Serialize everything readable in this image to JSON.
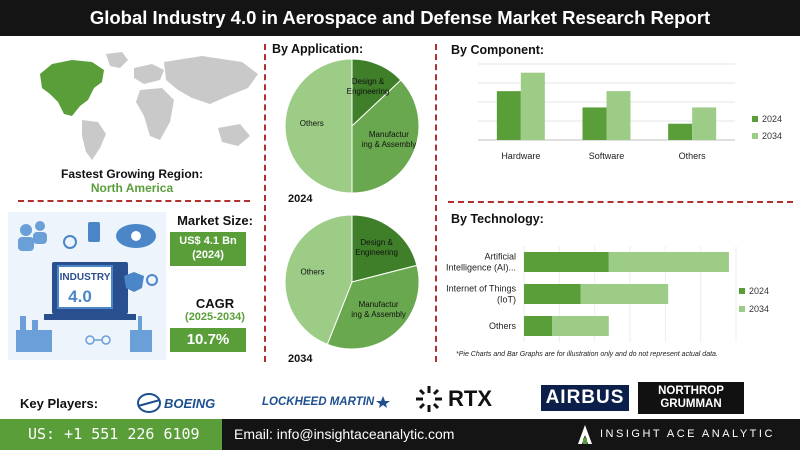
{
  "header": {
    "title": "Global Industry 4.0 in Aerospace and Defense Market Research Report"
  },
  "region": {
    "label": "Fastest Growing Region:",
    "value": "North America"
  },
  "market_size": {
    "label": "Market Size:",
    "value": "US$ 4.1 Bn",
    "year": "(2024)"
  },
  "cagr": {
    "label": "CAGR",
    "period": "(2025-2034)",
    "value": "10.7%"
  },
  "illustration": {
    "text": "INDUSTRY",
    "number": "4.0"
  },
  "sections": {
    "application": "By Application:",
    "component": "By Component:",
    "technology": "By Technology:"
  },
  "disclaimer": "*Pie Charts and Bar Graphs are for illustration only and do not represent actual data.",
  "key_players": {
    "label": "Key Players:",
    "companies": [
      "BOEING",
      "LOCKHEED MARTIN",
      "RTX",
      "AIRBUS",
      "NORTHROP",
      "GRUMMAN"
    ]
  },
  "footer": {
    "phone": "US: +1 551 226 6109",
    "email": "Email: info@insightaceanalytic.com",
    "brand": "INSIGHT ACE ANALYTIC"
  },
  "colors": {
    "dark_green": "#5a9e3a",
    "light_green": "#9ccc86",
    "mid_green": "#6aa84f",
    "pie_dark": "#3f7f2a",
    "dash": "#b03030"
  },
  "chart_data": [
    {
      "type": "pie",
      "year_label": "2024",
      "labels": [
        "Design & Engineering",
        "Manufacturing & Assembly",
        "Others"
      ],
      "values": [
        13,
        37,
        50
      ]
    },
    {
      "type": "pie",
      "year_label": "2034",
      "labels": [
        "Design & Engineering",
        "Manufacturing & Assembly",
        "Others"
      ],
      "values": [
        21,
        35,
        44
      ]
    },
    {
      "type": "bar",
      "categories": [
        "Hardware",
        "Software",
        "Others"
      ],
      "series": [
        {
          "name": "2024",
          "values": [
            45,
            30,
            15
          ]
        },
        {
          "name": "2034",
          "values": [
            62,
            45,
            30
          ]
        }
      ],
      "ylim": [
        0,
        70
      ],
      "legend": "right"
    },
    {
      "type": "bar",
      "orientation": "horizontal-stacked",
      "categories": [
        "Artificial Intelligence (AI)...",
        "Internet of Things (IoT)",
        "Others"
      ],
      "category_lines": [
        [
          "Artificial",
          "Intelligence (AI)..."
        ],
        [
          "Internet of Things",
          "(IoT)"
        ],
        [
          "Others"
        ]
      ],
      "series": [
        {
          "name": "2024",
          "values": [
            60,
            40,
            20
          ]
        },
        {
          "name": "2034",
          "values": [
            85,
            62,
            40
          ]
        }
      ],
      "xlim": [
        0,
        150
      ],
      "legend": "right"
    }
  ]
}
